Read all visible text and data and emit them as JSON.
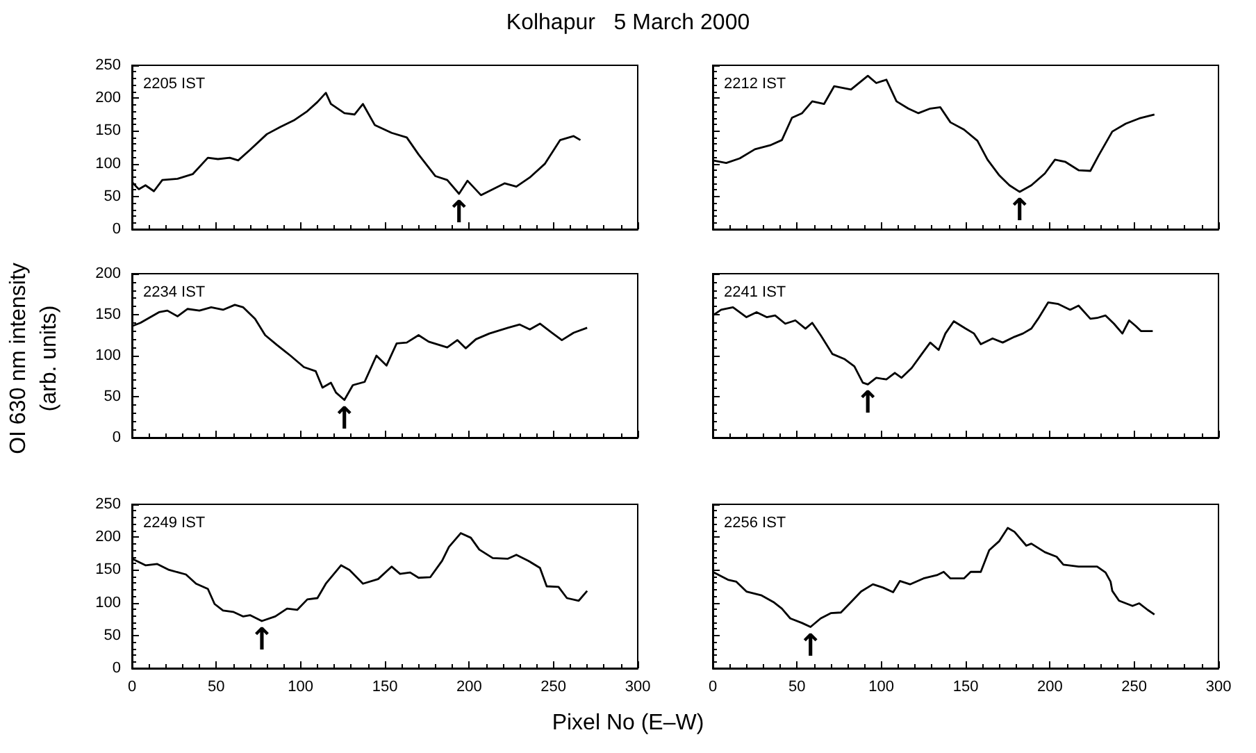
{
  "chart_data": [
    {
      "type": "line",
      "title": "Kolhapur   5 March 2000",
      "annotations": [
        "2205 IST",
        {
          "text": "↑",
          "x": 194,
          "y": 54
        }
      ],
      "xlim": [
        0,
        300
      ],
      "xticks": [
        0,
        50,
        100,
        150,
        200,
        250,
        300
      ],
      "ylim": [
        0,
        250
      ],
      "yticks": [
        0,
        50,
        100,
        150,
        200,
        250
      ],
      "tick_labels": "y",
      "series": [
        {
          "color": "#000000",
          "x": [
            0,
            4,
            8,
            13,
            18,
            27,
            36,
            45,
            51,
            58,
            63,
            70,
            80,
            88,
            96,
            104,
            110,
            115,
            118,
            126,
            132,
            137,
            144,
            154,
            163,
            170,
            180,
            187,
            194,
            199,
            207,
            214,
            221,
            228,
            236,
            245,
            254,
            262,
            266
          ],
          "values": [
            72,
            61,
            67,
            58,
            75,
            77,
            84,
            109,
            107,
            109,
            105,
            121,
            145,
            156,
            166,
            180,
            194,
            208,
            191,
            177,
            175,
            191,
            159,
            147,
            140,
            114,
            81,
            75,
            54,
            74,
            52,
            61,
            70,
            65,
            79,
            100,
            136,
            142,
            136
          ]
        }
      ]
    },
    {
      "type": "line",
      "annotations": [
        "2212 IST",
        {
          "text": "↑",
          "x": 182,
          "y": 57
        }
      ],
      "xlim": [
        0,
        300
      ],
      "xticks": [
        0,
        50,
        100,
        150,
        200,
        250,
        300
      ],
      "ylim": [
        0,
        250
      ],
      "yticks": [
        0,
        50,
        100,
        150,
        200,
        250
      ],
      "tick_labels": false,
      "series": [
        {
          "color": "#000000",
          "x": [
            0,
            8,
            16,
            25,
            34,
            41,
            47,
            53,
            59,
            66,
            72,
            82,
            92,
            97,
            103,
            109,
            116,
            122,
            129,
            135,
            141,
            149,
            157,
            163,
            170,
            176,
            182,
            189,
            197,
            203,
            209,
            217,
            224,
            229,
            237,
            245,
            253,
            262
          ],
          "values": [
            105,
            101,
            108,
            122,
            128,
            136,
            170,
            177,
            195,
            191,
            218,
            213,
            234,
            223,
            228,
            195,
            184,
            177,
            184,
            186,
            163,
            152,
            135,
            106,
            82,
            67,
            57,
            67,
            85,
            106,
            103,
            90,
            89,
            113,
            149,
            161,
            169,
            175
          ]
        }
      ]
    },
    {
      "type": "line",
      "ylabel": "OI 630 nm intensity\n(arb. units)",
      "annotations": [
        "2234 IST",
        {
          "text": "↑",
          "x": 126,
          "y": 46
        }
      ],
      "xlim": [
        0,
        300
      ],
      "xticks": [
        0,
        50,
        100,
        150,
        200,
        250,
        300
      ],
      "ylim": [
        0,
        200
      ],
      "yticks": [
        0,
        50,
        100,
        150,
        200
      ],
      "tick_labels": "y",
      "series": [
        {
          "color": "#000000",
          "x": [
            0,
            5,
            16,
            21,
            27,
            33,
            40,
            47,
            54,
            61,
            66,
            73,
            79,
            86,
            94,
            102,
            109,
            113,
            118,
            121,
            126,
            131,
            138,
            145,
            151,
            157,
            163,
            170,
            176,
            187,
            193,
            198,
            204,
            212,
            223,
            230,
            236,
            242,
            249,
            255,
            262,
            270
          ],
          "values": [
            136,
            140,
            153,
            155,
            148,
            157,
            155,
            159,
            156,
            162,
            159,
            145,
            125,
            113,
            100,
            86,
            81,
            61,
            67,
            55,
            46,
            64,
            68,
            100,
            88,
            115,
            116,
            125,
            117,
            110,
            119,
            109,
            120,
            127,
            134,
            138,
            132,
            139,
            128,
            119,
            128,
            134
          ]
        }
      ]
    },
    {
      "type": "line",
      "annotations": [
        "2241 IST",
        {
          "text": "↑",
          "x": 92,
          "y": 65
        }
      ],
      "xlim": [
        0,
        300
      ],
      "xticks": [
        0,
        50,
        100,
        150,
        200,
        250,
        300
      ],
      "ylim": [
        0,
        200
      ],
      "yticks": [
        0,
        50,
        100,
        150,
        200
      ],
      "tick_labels": false,
      "series": [
        {
          "color": "#000000",
          "x": [
            0,
            5,
            12,
            20,
            26,
            32,
            37,
            43,
            49,
            55,
            59,
            64,
            71,
            78,
            84,
            89,
            92,
            97,
            103,
            108,
            112,
            118,
            124,
            129,
            134,
            138,
            143,
            150,
            155,
            159,
            166,
            172,
            179,
            184,
            189,
            193,
            199,
            205,
            212,
            217,
            224,
            228,
            233,
            238,
            243,
            247,
            251,
            254,
            261
          ],
          "values": [
            149,
            156,
            159,
            147,
            153,
            147,
            149,
            139,
            143,
            133,
            140,
            125,
            102,
            96,
            87,
            67,
            65,
            73,
            71,
            79,
            73,
            85,
            102,
            116,
            107,
            127,
            142,
            133,
            127,
            114,
            121,
            116,
            123,
            127,
            133,
            145,
            165,
            163,
            156,
            161,
            145,
            146,
            149,
            139,
            127,
            143,
            136,
            130,
            130
          ]
        }
      ]
    },
    {
      "type": "line",
      "annotations": [
        "2249 IST",
        {
          "text": "↑",
          "x": 77,
          "y": 72
        }
      ],
      "xlim": [
        0,
        300
      ],
      "xticks": [
        0,
        50,
        100,
        150,
        200,
        250,
        300
      ],
      "ylim": [
        0,
        250
      ],
      "yticks": [
        0,
        50,
        100,
        150,
        200,
        250
      ],
      "xlabel": "Pixel No (E–W)",
      "series": [
        {
          "color": "#000000",
          "x": [
            0,
            8,
            15,
            22,
            32,
            38,
            45,
            49,
            54,
            60,
            66,
            70,
            77,
            85,
            92,
            98,
            104,
            110,
            115,
            124,
            129,
            137,
            146,
            154,
            159,
            165,
            170,
            177,
            184,
            188,
            195,
            201,
            206,
            214,
            223,
            228,
            235,
            242,
            246,
            253,
            258,
            265,
            270
          ],
          "values": [
            167,
            157,
            159,
            150,
            143,
            129,
            121,
            98,
            88,
            86,
            79,
            81,
            72,
            79,
            91,
            89,
            105,
            107,
            129,
            157,
            150,
            129,
            136,
            155,
            144,
            146,
            138,
            139,
            164,
            185,
            206,
            199,
            181,
            168,
            167,
            173,
            164,
            153,
            125,
            124,
            107,
            103,
            118
          ]
        }
      ]
    },
    {
      "type": "line",
      "annotations": [
        "2256 IST",
        {
          "text": "↑",
          "x": 58,
          "y": 63
        }
      ],
      "xlim": [
        0,
        300
      ],
      "xticks": [
        0,
        50,
        100,
        150,
        200,
        250,
        300
      ],
      "ylim": [
        0,
        250
      ],
      "yticks": [
        0,
        50,
        100,
        150,
        200,
        250
      ],
      "tick_labels": "x",
      "series": [
        {
          "color": "#000000",
          "x": [
            0,
            9,
            14,
            20,
            29,
            36,
            41,
            46,
            53,
            58,
            64,
            70,
            76,
            82,
            88,
            95,
            101,
            107,
            111,
            117,
            125,
            133,
            137,
            141,
            149,
            153,
            159,
            164,
            170,
            175,
            179,
            186,
            189,
            197,
            204,
            208,
            217,
            228,
            233,
            236,
            237,
            241,
            249,
            253,
            258,
            262
          ],
          "values": [
            147,
            135,
            132,
            117,
            111,
            101,
            91,
            76,
            69,
            63,
            76,
            84,
            85,
            101,
            117,
            128,
            123,
            116,
            133,
            128,
            137,
            142,
            147,
            137,
            137,
            147,
            147,
            180,
            194,
            214,
            208,
            187,
            190,
            177,
            170,
            158,
            155,
            155,
            146,
            132,
            118,
            103,
            95,
            99,
            89,
            82
          ]
        }
      ]
    }
  ]
}
